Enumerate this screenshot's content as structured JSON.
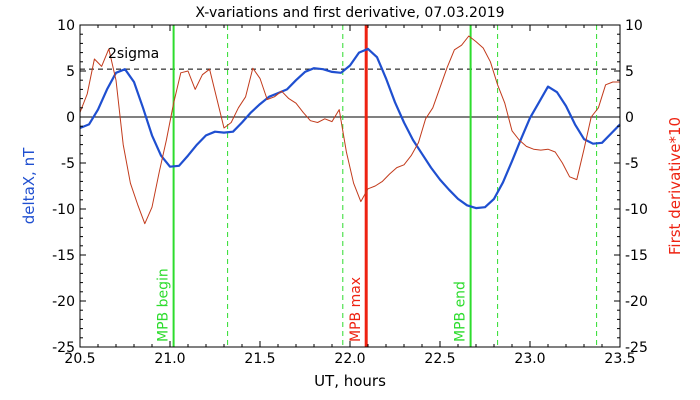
{
  "chart_data": {
    "type": "line",
    "title": "X-variations and first derivative, 07.03.2019",
    "xlabel": "UT, hours",
    "ylabel_left": "deltaX, nT",
    "ylabel_right": "First derivative*10",
    "xlim": [
      20.5,
      23.5
    ],
    "ylim": [
      -25,
      10
    ],
    "x_ticks": [
      20.5,
      21.0,
      21.5,
      22.0,
      22.5,
      23.0,
      23.5
    ],
    "x_tick_labels": [
      "20.5",
      "21.0",
      "21.5",
      "22.0",
      "22.5",
      "23.0",
      "23.5"
    ],
    "y_ticks": [
      10,
      5,
      0,
      -5,
      -10,
      -15,
      -20,
      -25
    ],
    "y_tick_labels": [
      "10",
      "5",
      "0",
      "-5",
      "-10",
      "-15",
      "-20",
      "-25"
    ],
    "threshold_label": "2sigma",
    "threshold_value": 5.2,
    "zero_line": 0,
    "colors": {
      "deltaX": "#1f4fd0",
      "derivative": "#c23b1c",
      "mpb_bounds": "#2ddc2d",
      "mpb_max": "#ee2211"
    },
    "series": [
      {
        "key": "deltaX",
        "x": [
          20.5,
          20.55,
          20.6,
          20.65,
          20.7,
          20.75,
          20.8,
          20.85,
          20.9,
          20.95,
          21.0,
          21.05,
          21.1,
          21.15,
          21.2,
          21.25,
          21.3,
          21.35,
          21.4,
          21.45,
          21.5,
          21.55,
          21.6,
          21.65,
          21.7,
          21.75,
          21.8,
          21.85,
          21.9,
          21.95,
          22.0,
          22.05,
          22.1,
          22.15,
          22.2,
          22.25,
          22.3,
          22.35,
          22.4,
          22.45,
          22.5,
          22.55,
          22.6,
          22.65,
          22.7,
          22.75,
          22.8,
          22.85,
          22.9,
          22.95,
          23.0,
          23.05,
          23.1,
          23.15,
          23.2,
          23.25,
          23.3,
          23.35,
          23.4,
          23.45,
          23.5
        ],
        "y": [
          -1.2,
          -0.8,
          0.8,
          3.0,
          4.8,
          5.2,
          3.8,
          1.0,
          -2.0,
          -4.2,
          -5.4,
          -5.3,
          -4.2,
          -3.0,
          -2.0,
          -1.6,
          -1.7,
          -1.6,
          -0.6,
          0.5,
          1.4,
          2.2,
          2.6,
          3.0,
          4.0,
          4.9,
          5.3,
          5.2,
          4.9,
          4.8,
          5.6,
          7.0,
          7.4,
          6.5,
          4.2,
          1.6,
          -0.6,
          -2.5,
          -4.0,
          -5.5,
          -6.8,
          -7.9,
          -8.9,
          -9.6,
          -9.9,
          -9.8,
          -8.9,
          -7.1,
          -4.8,
          -2.4,
          -0.1,
          1.6,
          3.3,
          2.7,
          1.2,
          -0.8,
          -2.4,
          -2.9,
          -2.8,
          -1.8,
          -0.8
        ]
      },
      {
        "key": "derivative",
        "x": [
          20.5,
          20.54,
          20.58,
          20.62,
          20.66,
          20.7,
          20.74,
          20.78,
          20.82,
          20.86,
          20.9,
          20.94,
          20.98,
          21.02,
          21.06,
          21.1,
          21.14,
          21.18,
          21.22,
          21.26,
          21.3,
          21.34,
          21.38,
          21.42,
          21.46,
          21.5,
          21.54,
          21.58,
          21.62,
          21.66,
          21.7,
          21.74,
          21.78,
          21.82,
          21.86,
          21.9,
          21.94,
          21.98,
          22.02,
          22.06,
          22.1,
          22.14,
          22.18,
          22.22,
          22.26,
          22.3,
          22.34,
          22.38,
          22.42,
          22.46,
          22.5,
          22.54,
          22.58,
          22.62,
          22.66,
          22.7,
          22.74,
          22.78,
          22.82,
          22.86,
          22.9,
          22.94,
          22.98,
          23.02,
          23.06,
          23.1,
          23.14,
          23.18,
          23.22,
          23.26,
          23.3,
          23.34,
          23.38,
          23.42,
          23.46,
          23.5
        ],
        "y": [
          0.5,
          2.5,
          6.3,
          5.5,
          7.4,
          4.0,
          -3.0,
          -7.2,
          -9.5,
          -11.6,
          -9.8,
          -6.0,
          -2.5,
          1.5,
          4.8,
          5.0,
          3.0,
          4.6,
          5.2,
          2.0,
          -1.2,
          -0.6,
          1.0,
          2.2,
          5.3,
          4.2,
          1.9,
          2.2,
          2.8,
          2.0,
          1.5,
          0.5,
          -0.4,
          -0.6,
          -0.2,
          -0.5,
          0.8,
          -3.8,
          -7.2,
          -9.2,
          -7.8,
          -7.5,
          -7.0,
          -6.2,
          -5.5,
          -5.2,
          -4.2,
          -2.8,
          -0.2,
          1.0,
          3.2,
          5.4,
          7.3,
          7.8,
          8.8,
          8.2,
          7.5,
          6.0,
          3.5,
          1.5,
          -1.5,
          -2.5,
          -3.2,
          -3.5,
          -3.6,
          -3.5,
          -3.8,
          -5.0,
          -6.5,
          -6.8,
          -3.5,
          0.0,
          1.0,
          3.5,
          3.8,
          3.8
        ]
      }
    ],
    "vertical_lines": [
      {
        "x": 21.02,
        "kind": "mpb_bounds",
        "style": "solid",
        "label": "MPB begin"
      },
      {
        "x": 21.32,
        "kind": "mpb_bounds",
        "style": "dashed",
        "label": ""
      },
      {
        "x": 21.96,
        "kind": "mpb_bounds",
        "style": "dashed",
        "label": ""
      },
      {
        "x": 22.09,
        "kind": "mpb_max",
        "style": "solid",
        "label": "MPB max"
      },
      {
        "x": 22.67,
        "kind": "mpb_bounds",
        "style": "solid",
        "label": "MPB end"
      },
      {
        "x": 22.82,
        "kind": "mpb_bounds",
        "style": "dashed",
        "label": ""
      },
      {
        "x": 23.37,
        "kind": "mpb_bounds",
        "style": "dashed",
        "label": ""
      }
    ]
  }
}
